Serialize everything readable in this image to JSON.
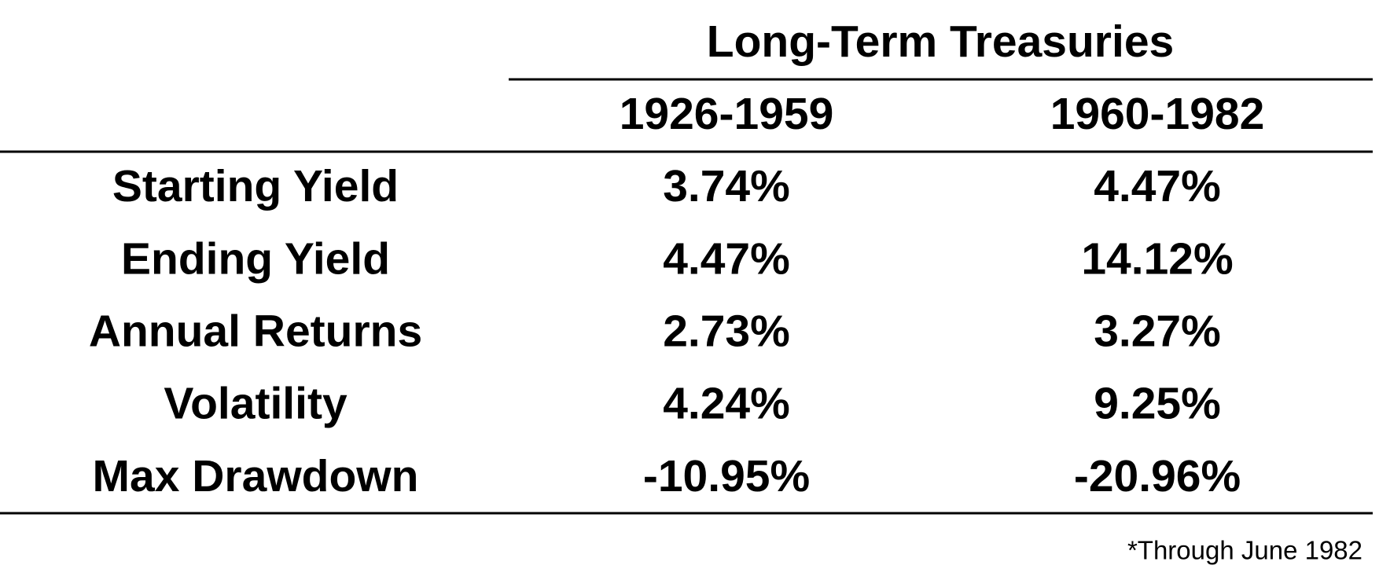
{
  "table": {
    "title": "Long-Term Treasuries",
    "columns": [
      "1926-1959",
      "1960-1982"
    ],
    "rows": [
      [
        "Starting Yield",
        "3.74%",
        "4.47%"
      ],
      [
        "Ending Yield",
        "4.47%",
        "14.12%"
      ],
      [
        "Annual Returns",
        "2.73%",
        "3.27%"
      ],
      [
        "Volatility",
        "4.24%",
        "9.25%"
      ],
      [
        "Max Drawdown",
        "-10.95%",
        "-20.96%"
      ]
    ],
    "footnote": "*Through June 1982"
  }
}
